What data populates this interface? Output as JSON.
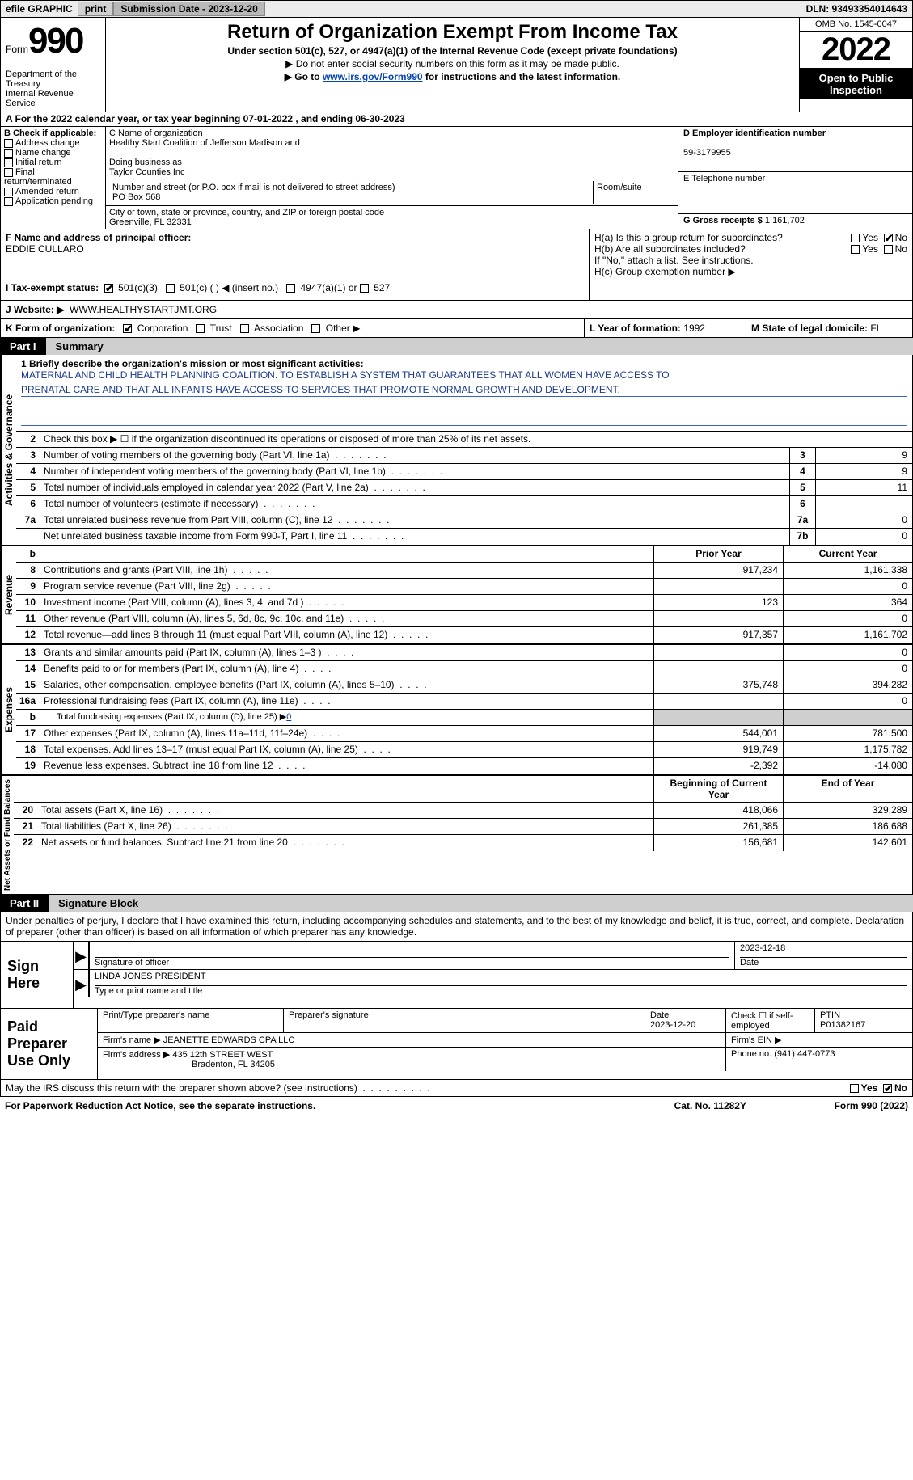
{
  "topbar": {
    "efile_label": "efile GRAPHIC",
    "print_btn": "print",
    "submission_label": "Submission Date - 2023-12-20",
    "dln_label": "DLN: 93493354014643"
  },
  "header": {
    "form_label": "Form",
    "form_number": "990",
    "dept": "Department of the Treasury",
    "irs": "Internal Revenue Service",
    "title": "Return of Organization Exempt From Income Tax",
    "subtitle": "Under section 501(c), 527, or 4947(a)(1) of the Internal Revenue Code (except private foundations)",
    "arrow1": "▶ Do not enter social security numbers on this form as it may be made public.",
    "arrow2_pre": "▶ Go to ",
    "arrow2_link": "www.irs.gov/Form990",
    "arrow2_post": " for instructions and the latest information.",
    "omb": "OMB No. 1545-0047",
    "year": "2022",
    "inspect": "Open to Public Inspection"
  },
  "a": {
    "line": "A For the 2022 calendar year, or tax year beginning 07-01-2022    , and ending 06-30-2023"
  },
  "b": {
    "label": "B Check if applicable:",
    "opts": [
      "Address change",
      "Name change",
      "Initial return",
      "Final return/terminated",
      "Amended return",
      "Application pending"
    ]
  },
  "c": {
    "name_label": "C Name of organization",
    "name": "Healthy Start Coalition of Jefferson Madison and",
    "dba_label": "Doing business as",
    "dba": "Taylor Counties Inc",
    "street_label": "Number and street (or P.O. box if mail is not delivered to street address)",
    "room_label": "Room/suite",
    "street": "PO Box 568",
    "city_label": "City or town, state or province, country, and ZIP or foreign postal code",
    "city": "Greenville, FL  32331"
  },
  "d": {
    "label": "D Employer identification number",
    "value": "59-3179955"
  },
  "e": {
    "label": "E Telephone number",
    "value": ""
  },
  "g": {
    "label": "G Gross receipts $",
    "value": "1,161,702"
  },
  "f": {
    "label": "F Name and address of principal officer:",
    "name": "EDDIE CULLARO"
  },
  "h": {
    "a_label": "H(a)  Is this a group return for subordinates?",
    "b_label": "H(b)  Are all subordinates included?",
    "note": "If \"No,\" attach a list. See instructions.",
    "c_label": "H(c)  Group exemption number ▶",
    "yes": "Yes",
    "no": "No"
  },
  "i": {
    "label": "I   Tax-exempt status:",
    "opt1": "501(c)(3)",
    "opt2": "501(c) (  ) ◀ (insert no.)",
    "opt3": "4947(a)(1) or",
    "opt4": "527"
  },
  "j": {
    "label": "J   Website: ▶",
    "value": "WWW.HEALTHYSTARTJMT.ORG"
  },
  "k": {
    "label": "K Form of organization:",
    "opts": [
      "Corporation",
      "Trust",
      "Association",
      "Other ▶"
    ]
  },
  "l": {
    "label": "L Year of formation:",
    "value": "1992"
  },
  "m": {
    "label": "M State of legal domicile:",
    "value": "FL"
  },
  "part1": {
    "num": "Part I",
    "title": "Summary"
  },
  "mission": {
    "q": "1   Briefly describe the organization's mission or most significant activities:",
    "line1": "MATERNAL AND CHILD HEALTH PLANNING COALITION. TO ESTABLISH A SYSTEM THAT GUARANTEES THAT ALL WOMEN HAVE ACCESS TO",
    "line2": "PRENATAL CARE AND THAT ALL INFANTS HAVE ACCESS TO SERVICES THAT PROMOTE NORMAL GROWTH AND DEVELOPMENT."
  },
  "gov": {
    "l2": "Check this box ▶ ☐  if the organization discontinued its operations or disposed of more than 25% of its net assets.",
    "label": "Activities & Governance",
    "lines": [
      {
        "n": "3",
        "d": "Number of voting members of the governing body (Part VI, line 1a)",
        "box": "3",
        "v": "9"
      },
      {
        "n": "4",
        "d": "Number of independent voting members of the governing body (Part VI, line 1b)",
        "box": "4",
        "v": "9"
      },
      {
        "n": "5",
        "d": "Total number of individuals employed in calendar year 2022 (Part V, line 2a)",
        "box": "5",
        "v": "11"
      },
      {
        "n": "6",
        "d": "Total number of volunteers (estimate if necessary)",
        "box": "6",
        "v": ""
      },
      {
        "n": "7a",
        "d": "Total unrelated business revenue from Part VIII, column (C), line 12",
        "box": "7a",
        "v": "0"
      },
      {
        "n": "",
        "d": "Net unrelated business taxable income from Form 990-T, Part I, line 11",
        "box": "7b",
        "v": "0"
      }
    ]
  },
  "cols": {
    "prior": "Prior Year",
    "curr": "Current Year"
  },
  "revenue": {
    "label": "Revenue",
    "lines": [
      {
        "n": "8",
        "d": "Contributions and grants (Part VIII, line 1h)",
        "p": "917,234",
        "c": "1,161,338"
      },
      {
        "n": "9",
        "d": "Program service revenue (Part VIII, line 2g)",
        "p": "",
        "c": "0"
      },
      {
        "n": "10",
        "d": "Investment income (Part VIII, column (A), lines 3, 4, and 7d )",
        "p": "123",
        "c": "364"
      },
      {
        "n": "11",
        "d": "Other revenue (Part VIII, column (A), lines 5, 6d, 8c, 9c, 10c, and 11e)",
        "p": "",
        "c": "0"
      },
      {
        "n": "12",
        "d": "Total revenue—add lines 8 through 11 (must equal Part VIII, column (A), line 12)",
        "p": "917,357",
        "c": "1,161,702"
      }
    ]
  },
  "expenses": {
    "label": "Expenses",
    "lines": [
      {
        "n": "13",
        "d": "Grants and similar amounts paid (Part IX, column (A), lines 1–3 )",
        "p": "",
        "c": "0"
      },
      {
        "n": "14",
        "d": "Benefits paid to or for members (Part IX, column (A), line 4)",
        "p": "",
        "c": "0"
      },
      {
        "n": "15",
        "d": "Salaries, other compensation, employee benefits (Part IX, column (A), lines 5–10)",
        "p": "375,748",
        "c": "394,282"
      },
      {
        "n": "16a",
        "d": "Professional fundraising fees (Part IX, column (A), line 11e)",
        "p": "",
        "c": "0"
      },
      {
        "n": "b",
        "d": "Total fundraising expenses (Part IX, column (D), line 25) ▶",
        "p": "GREY",
        "c": "GREY",
        "sub": true,
        "link": "0"
      },
      {
        "n": "17",
        "d": "Other expenses (Part IX, column (A), lines 11a–11d, 11f–24e)",
        "p": "544,001",
        "c": "781,500"
      },
      {
        "n": "18",
        "d": "Total expenses. Add lines 13–17 (must equal Part IX, column (A), line 25)",
        "p": "919,749",
        "c": "1,175,782"
      },
      {
        "n": "19",
        "d": "Revenue less expenses. Subtract line 18 from line 12",
        "p": "-2,392",
        "c": "-14,080"
      }
    ]
  },
  "netassets": {
    "label": "Net Assets or Fund Balances",
    "cols": {
      "prior": "Beginning of Current Year",
      "curr": "End of Year"
    },
    "lines": [
      {
        "n": "20",
        "d": "Total assets (Part X, line 16)",
        "p": "418,066",
        "c": "329,289"
      },
      {
        "n": "21",
        "d": "Total liabilities (Part X, line 26)",
        "p": "261,385",
        "c": "186,688"
      },
      {
        "n": "22",
        "d": "Net assets or fund balances. Subtract line 21 from line 20",
        "p": "156,681",
        "c": "142,601"
      }
    ]
  },
  "part2": {
    "num": "Part II",
    "title": "Signature Block"
  },
  "declare": "Under penalties of perjury, I declare that I have examined this return, including accompanying schedules and statements, and to the best of my knowledge and belief, it is true, correct, and complete. Declaration of preparer (other than officer) is based on all information of which preparer has any knowledge.",
  "sign": {
    "here": "Sign Here",
    "sig_label": "Signature of officer",
    "date_label": "Date",
    "date": "2023-12-18",
    "name": "LINDA JONES  PRESIDENT",
    "name_label": "Type or print name and title"
  },
  "prep": {
    "label": "Paid Preparer Use Only",
    "r1": {
      "c1": "Print/Type preparer's name",
      "c2": "Preparer's signature",
      "c3": "Date",
      "c3v": "2023-12-20",
      "c4": "Check ☐ if self-employed",
      "c5": "PTIN",
      "c5v": "P01382167"
    },
    "r2": {
      "c1": "Firm's name    ▶",
      "c1v": "JEANETTE EDWARDS CPA LLC",
      "c2": "Firm's EIN ▶"
    },
    "r3": {
      "c1": "Firm's address ▶",
      "c1v": "435 12th STREET WEST",
      "c1v2": "Bradenton, FL  34205",
      "c2": "Phone no.",
      "c2v": "(941) 447-0773"
    }
  },
  "discuss": {
    "q": "May the IRS discuss this return with the preparer shown above? (see instructions)",
    "yes": "Yes",
    "no": "No"
  },
  "footer": {
    "left": "For Paperwork Reduction Act Notice, see the separate instructions.",
    "mid": "Cat. No. 11282Y",
    "right": "Form 990 (2022)"
  }
}
